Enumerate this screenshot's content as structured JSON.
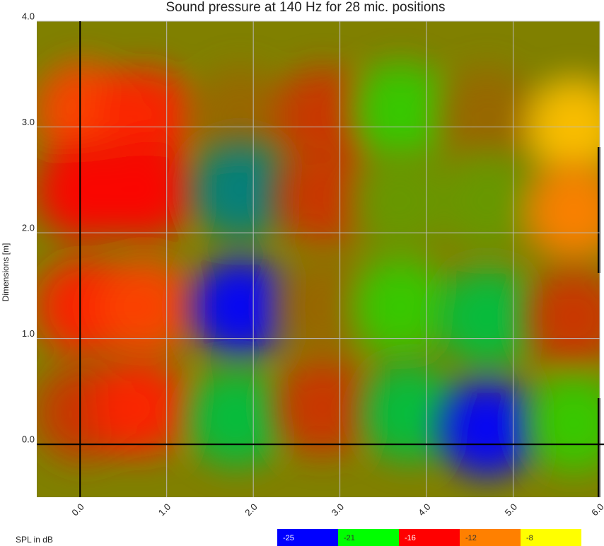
{
  "chart_data": {
    "type": "heatmap",
    "title": "Sound pressure at 140 Hz for 28 mic. positions",
    "y_label": "Dimensions [m]",
    "x": [
      0.05,
      0.75,
      1.85,
      2.8,
      3.7,
      4.7,
      5.7,
      0.05,
      0.75,
      1.85,
      2.8,
      3.7,
      4.7,
      5.7,
      0.05,
      0.75,
      1.85,
      2.8,
      3.7,
      4.7,
      5.7,
      0.05,
      0.7,
      1.8,
      2.8,
      3.8,
      4.7,
      5.7
    ],
    "y": [
      3.15,
      3.1,
      3.1,
      3.1,
      3.15,
      3.1,
      3.0,
      2.4,
      2.4,
      2.4,
      2.35,
      2.3,
      2.3,
      2.2,
      1.3,
      1.3,
      1.3,
      1.3,
      1.3,
      1.2,
      1.2,
      0.3,
      0.35,
      0.25,
      0.35,
      0.3,
      0.15,
      0.2
    ],
    "values": [
      -14,
      -15,
      -18,
      -17,
      -20,
      -18,
      -10,
      -16,
      -16,
      -23,
      -17,
      -19,
      -19,
      -12,
      -15,
      -14,
      -25,
      -18,
      -20,
      -22,
      -17,
      -17,
      -15,
      -22,
      -17,
      -22,
      -25,
      -20
    ],
    "xlim": [
      -0.5,
      6.0
    ],
    "ylim": [
      -0.5,
      4.0
    ],
    "xticks": [
      {
        "value": 0,
        "label": "0.0"
      },
      {
        "value": 1,
        "label": "1.0"
      },
      {
        "value": 2,
        "label": "2.0"
      },
      {
        "value": 3,
        "label": "3.0"
      },
      {
        "value": 4,
        "label": "4.0"
      },
      {
        "value": 5,
        "label": "5.0"
      },
      {
        "value": 6,
        "label": "6.0"
      }
    ],
    "yticks": [
      {
        "value": 0,
        "label": "0.0"
      },
      {
        "value": 1,
        "label": "1.0"
      },
      {
        "value": 2,
        "label": "2.0"
      },
      {
        "value": 3,
        "label": "3.0"
      },
      {
        "value": 4,
        "label": "4.0"
      }
    ],
    "grid": true,
    "legend": {
      "title": "SPL in dB",
      "stops": [
        {
          "value": -25,
          "color": "#0000ff"
        },
        {
          "value": -21,
          "color": "#00ff00"
        },
        {
          "value": -16,
          "color": "#ff0000"
        },
        {
          "value": -12,
          "color": "#ff8000"
        },
        {
          "value": -8,
          "color": "#ffff00"
        }
      ]
    }
  }
}
